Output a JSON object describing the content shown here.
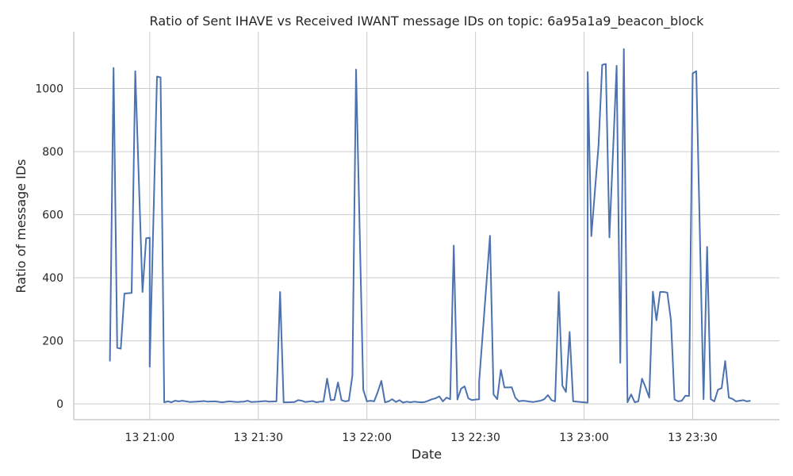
{
  "chart_data": {
    "type": "line",
    "title": "Ratio of Sent IHAVE vs Received IWANT message IDs on topic: 6a95a1a9_beacon_block",
    "xlabel": "Date",
    "ylabel": "Ratio of message IDs",
    "grid": true,
    "x_range": [
      "13 20:39",
      "13 23:54"
    ],
    "ylim": [
      -50,
      1180
    ],
    "x_ticks": [
      {
        "value": "13 21:00",
        "label": "13 21:00"
      },
      {
        "value": "13 21:30",
        "label": "13 21:30"
      },
      {
        "value": "13 22:00",
        "label": "13 22:00"
      },
      {
        "value": "13 22:30",
        "label": "13 22:30"
      },
      {
        "value": "13 23:00",
        "label": "13 23:00"
      },
      {
        "value": "13 23:30",
        "label": "13 23:30"
      }
    ],
    "y_ticks": [
      0,
      200,
      400,
      600,
      800,
      1000
    ],
    "series": [
      {
        "color": "#4c72b0",
        "points": [
          [
            "13 20:49",
            135
          ],
          [
            "13 20:50",
            1065
          ],
          [
            "13 20:51",
            178
          ],
          [
            "13 20:52",
            175
          ],
          [
            "13 20:53",
            350
          ],
          [
            "13 20:55",
            352
          ],
          [
            "13 20:56",
            1055
          ],
          [
            "13 20:58",
            355
          ],
          [
            "13 20:59",
            525
          ],
          [
            "13 21:00",
            527
          ],
          [
            "13 21:00",
            118
          ],
          [
            "13 21:02",
            1038
          ],
          [
            "13 21:03",
            1035
          ],
          [
            "13 21:04",
            5
          ],
          [
            "13 21:05",
            8
          ],
          [
            "13 21:06",
            5
          ],
          [
            "13 21:07",
            10
          ],
          [
            "13 21:08",
            8
          ],
          [
            "13 21:09",
            10
          ],
          [
            "13 21:11",
            6
          ],
          [
            "13 21:13",
            7
          ],
          [
            "13 21:15",
            9
          ],
          [
            "13 21:16",
            7
          ],
          [
            "13 21:18",
            8
          ],
          [
            "13 21:20",
            5
          ],
          [
            "13 21:22",
            8
          ],
          [
            "13 21:24",
            6
          ],
          [
            "13 21:26",
            7
          ],
          [
            "13 21:27",
            10
          ],
          [
            "13 21:28",
            6
          ],
          [
            "13 21:30",
            7
          ],
          [
            "13 21:32",
            9
          ],
          [
            "13 21:33",
            7
          ],
          [
            "13 21:35",
            8
          ],
          [
            "13 21:36",
            355
          ],
          [
            "13 21:37",
            5
          ],
          [
            "13 21:38",
            5
          ],
          [
            "13 21:40",
            6
          ],
          [
            "13 21:41",
            12
          ],
          [
            "13 21:42",
            10
          ],
          [
            "13 21:43",
            6
          ],
          [
            "13 21:45",
            9
          ],
          [
            "13 21:46",
            5
          ],
          [
            "13 21:47",
            7
          ],
          [
            "13 21:48",
            7
          ],
          [
            "13 21:49",
            80
          ],
          [
            "13 21:50",
            12
          ],
          [
            "13 21:51",
            13
          ],
          [
            "13 21:52",
            68
          ],
          [
            "13 21:53",
            12
          ],
          [
            "13 21:54",
            8
          ],
          [
            "13 21:55",
            10
          ],
          [
            "13 21:56",
            90
          ],
          [
            "13 21:57",
            1060
          ],
          [
            "13 21:59",
            45
          ],
          [
            "13 22:00",
            8
          ],
          [
            "13 22:01",
            10
          ],
          [
            "13 22:02",
            8
          ],
          [
            "13 22:03",
            38
          ],
          [
            "13 22:04",
            73
          ],
          [
            "13 22:05",
            5
          ],
          [
            "13 22:06",
            8
          ],
          [
            "13 22:07",
            15
          ],
          [
            "13 22:08",
            6
          ],
          [
            "13 22:09",
            12
          ],
          [
            "13 22:10",
            4
          ],
          [
            "13 22:11",
            7
          ],
          [
            "13 22:12",
            5
          ],
          [
            "13 22:13",
            7
          ],
          [
            "13 22:14",
            6
          ],
          [
            "13 22:15",
            5
          ],
          [
            "13 22:16",
            6
          ],
          [
            "13 22:17",
            10
          ],
          [
            "13 22:18",
            15
          ],
          [
            "13 22:19",
            18
          ],
          [
            "13 22:20",
            24
          ],
          [
            "13 22:21",
            8
          ],
          [
            "13 22:22",
            20
          ],
          [
            "13 22:23",
            15
          ],
          [
            "13 22:24",
            502
          ],
          [
            "13 22:25",
            14
          ],
          [
            "13 22:26",
            48
          ],
          [
            "13 22:27",
            56
          ],
          [
            "13 22:28",
            18
          ],
          [
            "13 22:29",
            12
          ],
          [
            "13 22:30",
            14
          ],
          [
            "13 22:31",
            15
          ],
          [
            "13 22:31",
            70
          ],
          [
            "13 22:34",
            533
          ],
          [
            "13 22:35",
            30
          ],
          [
            "13 22:36",
            15
          ],
          [
            "13 22:37",
            108
          ],
          [
            "13 22:38",
            52
          ],
          [
            "13 22:39",
            52
          ],
          [
            "13 22:40",
            53
          ],
          [
            "13 22:41",
            20
          ],
          [
            "13 22:42",
            8
          ],
          [
            "13 22:43",
            10
          ],
          [
            "13 22:44",
            9
          ],
          [
            "13 22:45",
            7
          ],
          [
            "13 22:46",
            6
          ],
          [
            "13 22:47",
            8
          ],
          [
            "13 22:48",
            10
          ],
          [
            "13 22:49",
            15
          ],
          [
            "13 22:50",
            28
          ],
          [
            "13 22:51",
            12
          ],
          [
            "13 22:52",
            8
          ],
          [
            "13 22:53",
            355
          ],
          [
            "13 22:54",
            58
          ],
          [
            "13 22:55",
            38
          ],
          [
            "13 22:56",
            228
          ],
          [
            "13 22:57",
            8
          ],
          [
            "13 22:58",
            7
          ],
          [
            "13 22:59",
            6
          ],
          [
            "13 23:00",
            5
          ],
          [
            "13 23:01",
            4
          ],
          [
            "13 23:01",
            1052
          ],
          [
            "13 23:02",
            532
          ],
          [
            "13 23:04",
            820
          ],
          [
            "13 23:05",
            1075
          ],
          [
            "13 23:06",
            1078
          ],
          [
            "13 23:07",
            528
          ],
          [
            "13 23:09",
            1072
          ],
          [
            "13 23:10",
            130
          ],
          [
            "13 23:11",
            1125
          ],
          [
            "13 23:12",
            5
          ],
          [
            "13 23:13",
            30
          ],
          [
            "13 23:14",
            5
          ],
          [
            "13 23:15",
            8
          ],
          [
            "13 23:16",
            80
          ],
          [
            "13 23:17",
            52
          ],
          [
            "13 23:18",
            20
          ],
          [
            "13 23:19",
            356
          ],
          [
            "13 23:20",
            265
          ],
          [
            "13 23:21",
            355
          ],
          [
            "13 23:22",
            355
          ],
          [
            "13 23:23",
            353
          ],
          [
            "13 23:24",
            265
          ],
          [
            "13 23:25",
            14
          ],
          [
            "13 23:26",
            8
          ],
          [
            "13 23:27",
            10
          ],
          [
            "13 23:28",
            26
          ],
          [
            "13 23:29",
            25
          ],
          [
            "13 23:30",
            1048
          ],
          [
            "13 23:31",
            1055
          ],
          [
            "13 23:33",
            15
          ],
          [
            "13 23:34",
            498
          ],
          [
            "13 23:35",
            15
          ],
          [
            "13 23:36",
            8
          ],
          [
            "13 23:37",
            45
          ],
          [
            "13 23:38",
            50
          ],
          [
            "13 23:39",
            136
          ],
          [
            "13 23:40",
            20
          ],
          [
            "13 23:41",
            16
          ],
          [
            "13 23:42",
            8
          ],
          [
            "13 23:43",
            10
          ],
          [
            "13 23:44",
            12
          ],
          [
            "13 23:45",
            8
          ],
          [
            "13 23:46",
            10
          ]
        ]
      }
    ]
  }
}
